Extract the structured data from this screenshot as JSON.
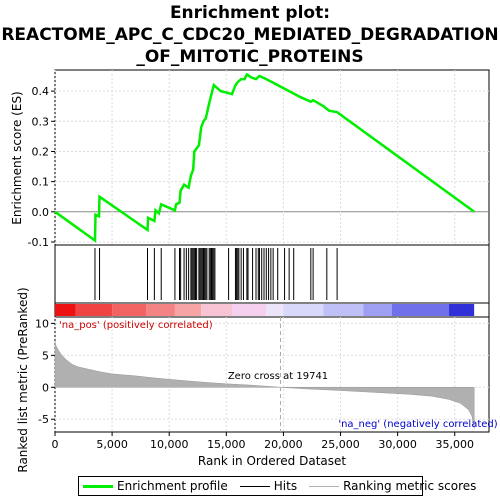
{
  "title_lines": [
    "Enrichment plot:",
    "REACTOME_APC_C_CDC20_MEDIATED_DEGRADATION",
    "_OF_MITOTIC_PROTEINS"
  ],
  "colors": {
    "es_line": "#00ee00",
    "hits": "#000000",
    "metric_fill": "#b0b0b0",
    "zero_cross_line": "#aaaaaa",
    "pos_label": "#cc0000",
    "neg_label": "#0000cc"
  },
  "legend": [
    {
      "label": "Enrichment profile",
      "color": "#00ee00",
      "style": "thick"
    },
    {
      "label": "Hits",
      "color": "#000000",
      "style": "thin"
    },
    {
      "label": "Ranking metric scores",
      "color": "#b0b0b0",
      "style": "thin"
    }
  ],
  "chart_data": {
    "type": "line",
    "xlabel": "Rank in Ordered Dataset",
    "x_ticks": [
      0,
      5000,
      10000,
      15000,
      20000,
      25000,
      30000,
      35000
    ],
    "x_tick_labels": [
      "0",
      "5,000",
      "10,000",
      "15,000",
      "20,000",
      "25,000",
      "30,000",
      "35,000"
    ],
    "xlim": [
      0,
      38000
    ],
    "es_panel": {
      "ylabel": "Enrichment score (ES)",
      "ylim": [
        -0.11,
        0.47
      ],
      "y_ticks": [
        -0.1,
        0.0,
        0.1,
        0.2,
        0.3,
        0.4
      ],
      "y_tick_labels": [
        "-0.1",
        "0.0",
        "0.1",
        "0.2",
        "0.3",
        "0.4"
      ],
      "profile": [
        [
          0,
          0.0
        ],
        [
          3500,
          -0.095
        ],
        [
          3550,
          -0.01
        ],
        [
          3850,
          -0.015
        ],
        [
          3900,
          0.05
        ],
        [
          8100,
          -0.06
        ],
        [
          8150,
          -0.02
        ],
        [
          8700,
          -0.03
        ],
        [
          8800,
          0.005
        ],
        [
          9100,
          -0.005
        ],
        [
          9300,
          0.025
        ],
        [
          10500,
          0.005
        ],
        [
          10600,
          0.025
        ],
        [
          10900,
          0.03
        ],
        [
          11000,
          0.07
        ],
        [
          11300,
          0.09
        ],
        [
          11700,
          0.08
        ],
        [
          11900,
          0.12
        ],
        [
          12100,
          0.14
        ],
        [
          12200,
          0.2
        ],
        [
          12400,
          0.21
        ],
        [
          12600,
          0.22
        ],
        [
          12800,
          0.28
        ],
        [
          13000,
          0.3
        ],
        [
          13200,
          0.31
        ],
        [
          13500,
          0.36
        ],
        [
          13700,
          0.39
        ],
        [
          13900,
          0.42
        ],
        [
          14500,
          0.4
        ],
        [
          15000,
          0.395
        ],
        [
          15500,
          0.39
        ],
        [
          15800,
          0.42
        ],
        [
          16000,
          0.43
        ],
        [
          16300,
          0.44
        ],
        [
          16600,
          0.44
        ],
        [
          16800,
          0.455
        ],
        [
          17200,
          0.445
        ],
        [
          17600,
          0.44
        ],
        [
          17900,
          0.45
        ],
        [
          18500,
          0.44
        ],
        [
          19500,
          0.42
        ],
        [
          20500,
          0.4
        ],
        [
          21500,
          0.38
        ],
        [
          22400,
          0.365
        ],
        [
          22600,
          0.37
        ],
        [
          23500,
          0.35
        ],
        [
          24000,
          0.335
        ],
        [
          24700,
          0.33
        ],
        [
          36700,
          0.0
        ]
      ],
      "hits": [
        3500,
        3900,
        8100,
        8700,
        9300,
        10500,
        10900,
        11000,
        11300,
        11500,
        11700,
        11900,
        12000,
        12100,
        12200,
        12300,
        12400,
        12600,
        12700,
        12800,
        12900,
        13000,
        13100,
        13200,
        13300,
        13500,
        13600,
        13700,
        13800,
        13900,
        14000,
        15200,
        15800,
        15900,
        16000,
        16100,
        16300,
        16500,
        16800,
        16900,
        17300,
        17600,
        17800,
        17900,
        18100,
        18300,
        18500,
        18700,
        18900,
        19100,
        19500,
        20100,
        20500,
        20900,
        22400,
        22600,
        23800,
        24700
      ]
    },
    "metric_panel": {
      "ylabel": "Ranked list metric (PreRanked)",
      "ylim": [
        -7,
        11
      ],
      "y_ticks": [
        -5,
        0,
        5,
        10
      ],
      "y_tick_labels": [
        "-5",
        "0",
        "5",
        "10"
      ],
      "pos_label": "'na_pos' (positively correlated)",
      "neg_label": "'na_neg' (negatively correlated)",
      "zero_cross_label": "Zero cross at 19741",
      "zero_cross": 19741,
      "n_genes": 36700,
      "curve": [
        [
          0,
          7.2
        ],
        [
          100,
          6.5
        ],
        [
          300,
          5.8
        ],
        [
          600,
          5.0
        ],
        [
          1000,
          4.3
        ],
        [
          1500,
          3.6
        ],
        [
          2000,
          3.2
        ],
        [
          3000,
          2.8
        ],
        [
          4000,
          2.4
        ],
        [
          5000,
          2.1
        ],
        [
          7000,
          1.8
        ],
        [
          9000,
          1.4
        ],
        [
          11000,
          1.1
        ],
        [
          13000,
          0.8
        ],
        [
          15000,
          0.55
        ],
        [
          17000,
          0.35
        ],
        [
          19000,
          0.1
        ],
        [
          19741,
          0.0
        ],
        [
          22000,
          -0.25
        ],
        [
          25000,
          -0.5
        ],
        [
          28000,
          -0.8
        ],
        [
          31000,
          -1.1
        ],
        [
          33000,
          -1.4
        ],
        [
          34500,
          -1.9
        ],
        [
          35500,
          -2.5
        ],
        [
          36200,
          -3.5
        ],
        [
          36500,
          -4.5
        ],
        [
          36700,
          -6.5
        ]
      ]
    },
    "rank_bar": {
      "segments": [
        {
          "from": 0,
          "to": 1800,
          "color": "#ee1111"
        },
        {
          "from": 1800,
          "to": 5000,
          "color": "#f04444"
        },
        {
          "from": 5000,
          "to": 8000,
          "color": "#f26464"
        },
        {
          "from": 8000,
          "to": 10500,
          "color": "#f48484"
        },
        {
          "from": 10500,
          "to": 12800,
          "color": "#f6a4a4"
        },
        {
          "from": 12800,
          "to": 15500,
          "color": "#f8c4d4"
        },
        {
          "from": 15500,
          "to": 18500,
          "color": "#f4d0ee"
        },
        {
          "from": 18500,
          "to": 20000,
          "color": "#ece4f8"
        },
        {
          "from": 20000,
          "to": 23500,
          "color": "#d8d8fa"
        },
        {
          "from": 23500,
          "to": 27000,
          "color": "#c0c0f8"
        },
        {
          "from": 27000,
          "to": 29500,
          "color": "#9e9ef2"
        },
        {
          "from": 29500,
          "to": 34500,
          "color": "#7070ea"
        },
        {
          "from": 34500,
          "to": 36700,
          "color": "#3030d8"
        }
      ]
    }
  }
}
